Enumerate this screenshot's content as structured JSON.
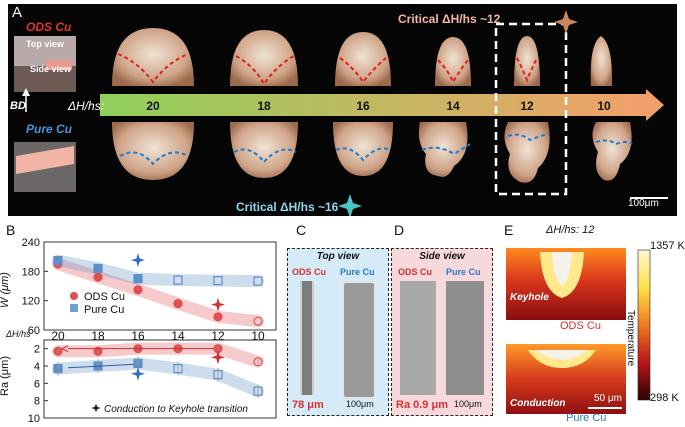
{
  "panels": {
    "a": "A",
    "b": "B",
    "c": "C",
    "d": "D",
    "e": "E"
  },
  "panelA": {
    "ods_label": "ODS Cu",
    "pure_label": "Pure Cu",
    "top_view": "Top view",
    "side_view": "Side view",
    "bd": "BD",
    "ratio_label": "ΔH/hs:",
    "ratios": [
      "20",
      "18",
      "16",
      "14",
      "12",
      "10"
    ],
    "critical_ods": "Critical ΔH/hs ~12",
    "critical_pure": "Critical ΔH/hs ~16",
    "scale": "100μm",
    "colors": {
      "ods": "#d93030",
      "pure": "#2f78c4",
      "arrow_start": "#8fd05a",
      "arrow_end": "#f2a06a"
    }
  },
  "panelB": {
    "chart_data": [
      {
        "type": "line",
        "x": [
          20,
          18,
          16,
          14,
          12,
          10
        ],
        "xtick_labels": [
          "20",
          "18",
          "16",
          "14",
          "12",
          "10"
        ],
        "ylabel": "W (μm)",
        "ylim": [
          60,
          240
        ],
        "yticks": [
          60,
          120,
          180,
          240
        ],
        "series": [
          {
            "name": "ODS Cu",
            "values": [
              195,
              168,
              142,
              114,
              87,
              78
            ],
            "color": "#e05050"
          },
          {
            "name": "Pure Cu",
            "values": [
              202,
              186,
              165,
              162,
              161,
              160
            ],
            "color": "#5d8fc8"
          }
        ],
        "transitions": [
          {
            "x": 16,
            "value": 203
          },
          {
            "x": 12,
            "value": 112
          }
        ]
      },
      {
        "type": "line",
        "x": [
          20,
          18,
          16,
          14,
          12,
          10
        ],
        "ylabel": "Ra (μm)",
        "ylim": [
          10,
          1
        ],
        "yticks": [
          2,
          4,
          6,
          8,
          10
        ],
        "series": [
          {
            "name": "ODS Cu",
            "values": [
              2.3,
              2.3,
              2.0,
              2.0,
              2.0,
              3.5
            ],
            "color": "#e05050"
          },
          {
            "name": "Pure Cu",
            "values": [
              4.3,
              4.0,
              3.7,
              4.3,
              5.0,
              6.9
            ],
            "color": "#5d8fc8"
          }
        ],
        "transitions": [
          {
            "x": 16,
            "value": 4.9
          },
          {
            "x": 12,
            "value": 3.0
          }
        ]
      }
    ],
    "axis_label_mid": "ΔH/hs",
    "legend": [
      "ODS Cu",
      "Pure Cu"
    ],
    "transition_note": "Conduction to Keyhole transition"
  },
  "panelC": {
    "title": "Top view",
    "ods": "ODS Cu",
    "pure": "Pure Cu",
    "value": "78 μm",
    "scale": "100μm"
  },
  "panelD": {
    "title": "Side view",
    "ods": "ODS Cu",
    "pure": "Pure Cu",
    "value": "Ra 0.9 μm",
    "scale": "100μm"
  },
  "panelE": {
    "header": "ΔH/hs: 12",
    "temp_max": "1357 K",
    "temp_min": "298 K",
    "temp_label": "Temperature",
    "keyhole": "Keyhole",
    "conduction": "Conduction",
    "ods": "ODS Cu",
    "pure": "Pure Cu",
    "scale": "50 μm"
  }
}
